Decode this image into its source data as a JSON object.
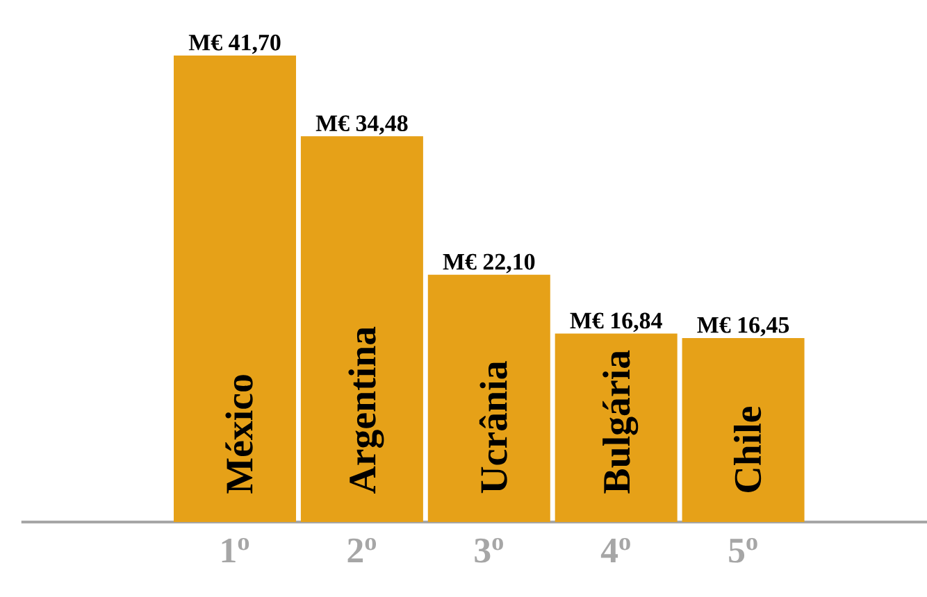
{
  "chart_data": {
    "type": "bar",
    "categories": [
      "1$^{o}$",
      "2$^{o}$",
      "3$^{o}$",
      "4$^{o}$",
      "5$^{o}$"
    ],
    "values": [
      41.7,
      34.48,
      22.1,
      16.84,
      16.45
    ],
    "value_labels": [
      "M€ 41,70",
      "M€ 34,48",
      "M€ 22,10",
      "M€ 16,84",
      "M€ 16,45"
    ],
    "annotations": [
      "México",
      "Argentina",
      "Ucrânia",
      "Bulgária",
      "Chile"
    ],
    "color": "#e6a118",
    "tick_labels": "x"
  }
}
